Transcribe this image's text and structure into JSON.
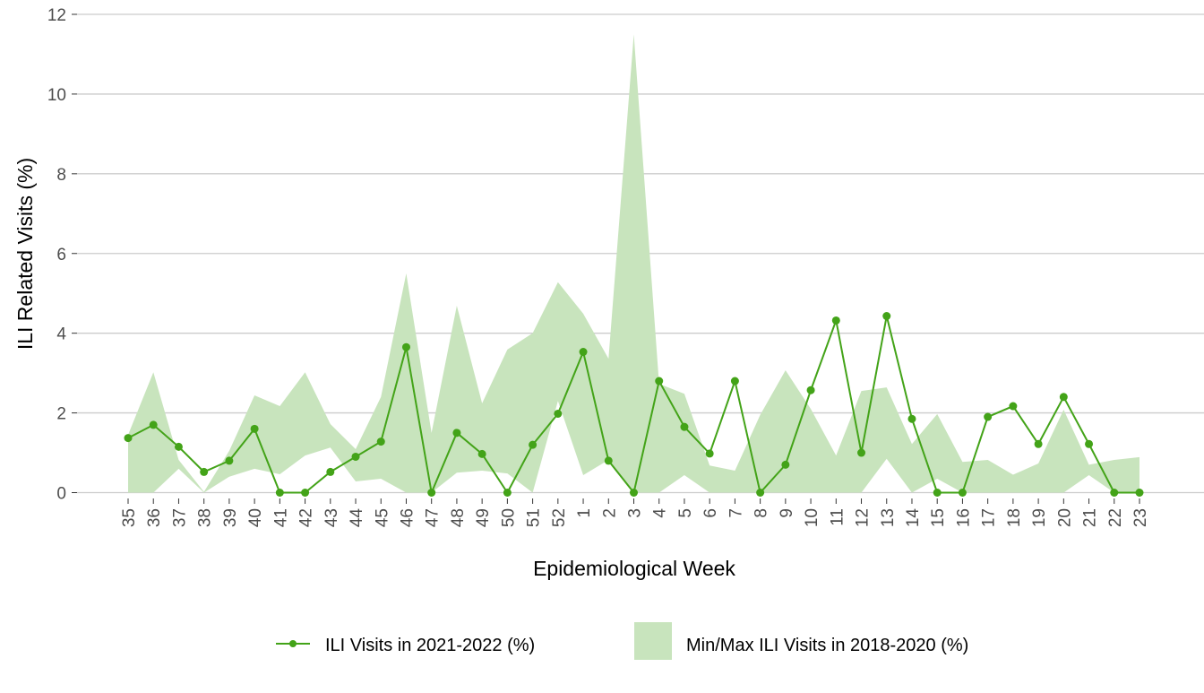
{
  "chart_data": {
    "type": "line",
    "xlabel": "Epidemiological Week",
    "ylabel": "ILI Related Visits (%)",
    "ylim": [
      0,
      12
    ],
    "yticks": [
      0,
      2,
      4,
      6,
      8,
      10,
      12
    ],
    "grid": "horizontal",
    "legend_position": "bottom",
    "categories": [
      "35",
      "36",
      "37",
      "38",
      "39",
      "40",
      "41",
      "42",
      "43",
      "44",
      "45",
      "46",
      "47",
      "48",
      "49",
      "50",
      "51",
      "52",
      "1",
      "2",
      "3",
      "4",
      "5",
      "6",
      "7",
      "8",
      "9",
      "10",
      "11",
      "12",
      "13",
      "14",
      "15",
      "16",
      "17",
      "18",
      "19",
      "20",
      "21",
      "22",
      "23"
    ],
    "series": [
      {
        "name": "ILI Visits in 2021-2022 (%)",
        "type": "line",
        "color": "#43a318",
        "values": [
          1.37,
          1.7,
          1.15,
          0.52,
          0.8,
          1.6,
          0,
          0,
          0.52,
          0.9,
          1.28,
          3.65,
          0,
          1.5,
          0.97,
          0,
          1.2,
          1.98,
          3.53,
          0.8,
          0,
          2.8,
          1.65,
          0.98,
          2.8,
          0,
          0.7,
          2.57,
          4.32,
          1.0,
          4.43,
          1.85,
          0,
          0,
          1.9,
          2.17,
          1.22,
          2.4,
          1.22,
          0,
          0
        ]
      },
      {
        "name": "Min/Max ILI Visits in 2018-2020 (%)",
        "type": "ribbon",
        "color": "#c8e4bd",
        "max": [
          1.45,
          3.02,
          0.82,
          0.02,
          1.05,
          2.44,
          2.17,
          3.02,
          1.72,
          1.09,
          2.4,
          5.5,
          1.5,
          4.69,
          2.24,
          3.59,
          4.0,
          5.28,
          4.49,
          3.36,
          11.5,
          2.73,
          2.48,
          0.68,
          0.55,
          1.95,
          3.07,
          2.1,
          0.93,
          2.55,
          2.64,
          1.22,
          1.97,
          0.77,
          0.82,
          0.45,
          0.73,
          2.08,
          0.7,
          0.82,
          0.89
        ],
        "min": [
          0,
          0,
          0.6,
          0,
          0.4,
          0.6,
          0.46,
          0.93,
          1.13,
          0.28,
          0.35,
          0,
          0,
          0.5,
          0.55,
          0.48,
          0,
          2.3,
          0.44,
          0.82,
          0,
          0,
          0.44,
          0,
          0,
          0,
          0,
          0,
          0,
          0,
          0.85,
          0,
          0.35,
          0,
          0,
          0,
          0,
          0,
          0.44,
          0,
          0
        ]
      }
    ]
  }
}
